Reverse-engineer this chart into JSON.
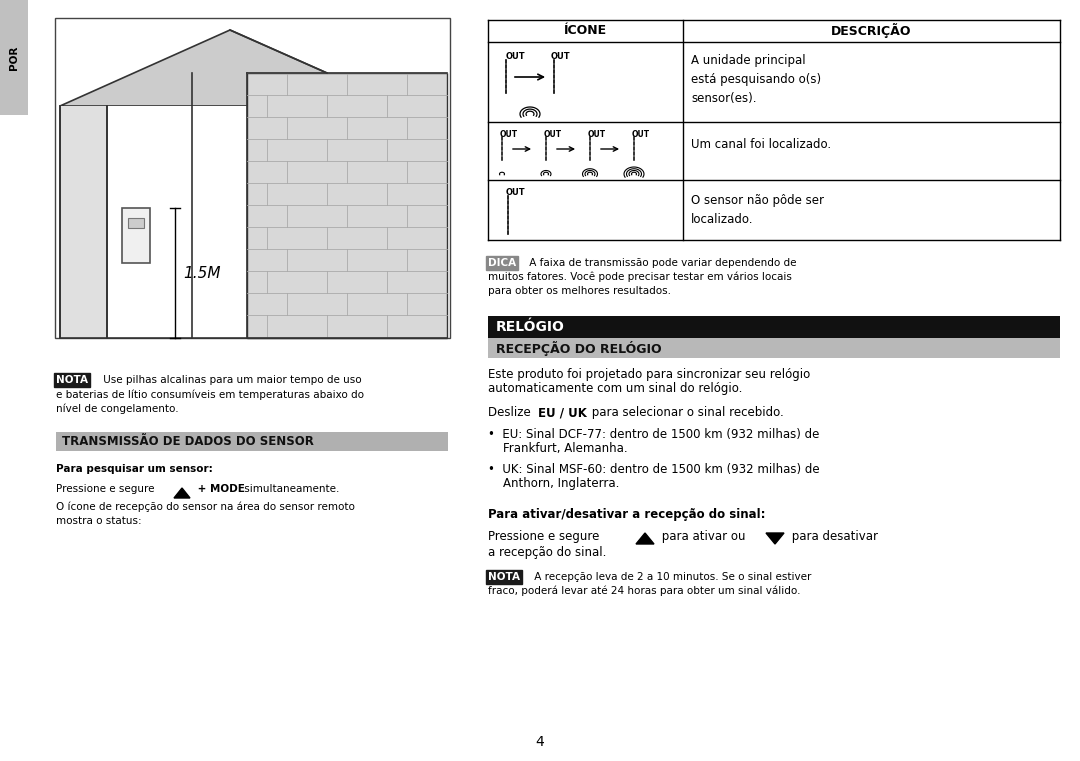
{
  "page_bg": "#ffffff",
  "fig_width": 10.8,
  "fig_height": 7.61,
  "dpi": 100,
  "por_label": "POR",
  "por_bg": "#c0c0c0",
  "section1_title": "TRANSMISSÃO DE DADOS DO SENSOR",
  "section2_title": "RELÓGIO",
  "section3_title": "RECEPÇÃO DO RELÓGIO",
  "table_header_icone": "ÍCONE",
  "table_header_descricao": "DESCRIÇÃO",
  "table_row1_desc": "A unidade principal\nestá pesquisando o(s)\nsensor(es).",
  "table_row2_desc": "Um canal foi localizado.",
  "table_row3_desc": "O sensor não pôde ser\nlocalizado.",
  "nota_label": "NOTA",
  "dica_label": "DICA",
  "relogio_text1a": "Este produto foi projetado para sincronizar seu relógio",
  "relogio_text1b": "automaticamente com um sinal do relógio.",
  "deslize_text": "Deslize ",
  "deslize_bold": "EU / UK",
  "deslize_rest": " para selecionar o sinal recebido.",
  "bullet1a": "•  EU: Sinal DCF-77: dentro de 1500 km (932 milhas) de",
  "bullet1b": "    Frankfurt, Alemanha.",
  "bullet2a": "•  UK: Sinal MSF-60: dentro de 1500 km (932 milhas) de",
  "bullet2b": "    Anthorn, Inglaterra.",
  "para_ativar_title": "Para ativar/desativar a recepção do sinal:",
  "para_ativar_a": "Pressione e segure",
  "para_ativar_b": "para ativar ou",
  "para_ativar_c": "para desativar",
  "para_ativar_d": "a recepção do sinal.",
  "nota2_text_a": " A recepção leva de 2 a 10 minutos. Se o sinal estiver",
  "nota2_text_b": "fraco, poderá levar até 24 horas para obter um sinal válido.",
  "nota1_text_a": " Use pilhas alcalinas para um maior tempo de uso",
  "nota1_text_b": "e baterias de lítio consumíveis em temperaturas abaixo do",
  "nota1_text_c": "nível de congelamento.",
  "para_pesquisar_title": "Para pesquisar um sensor:",
  "pressione_a": "Pressione e segure",
  "pressione_b": "+ MODE",
  "pressione_c": "simultaneamente.",
  "icone_line_a": "O ícone de recepção do sensor na área do sensor remoto",
  "icone_line_b": "mostra o status:",
  "page_number": "4",
  "dica_text_a": " A faixa de transmissão pode variar dependendo de",
  "dica_text_b": "muitos fatores. Você pode precisar testar em vários locais",
  "dica_text_c": "para obter os melhores resultados."
}
